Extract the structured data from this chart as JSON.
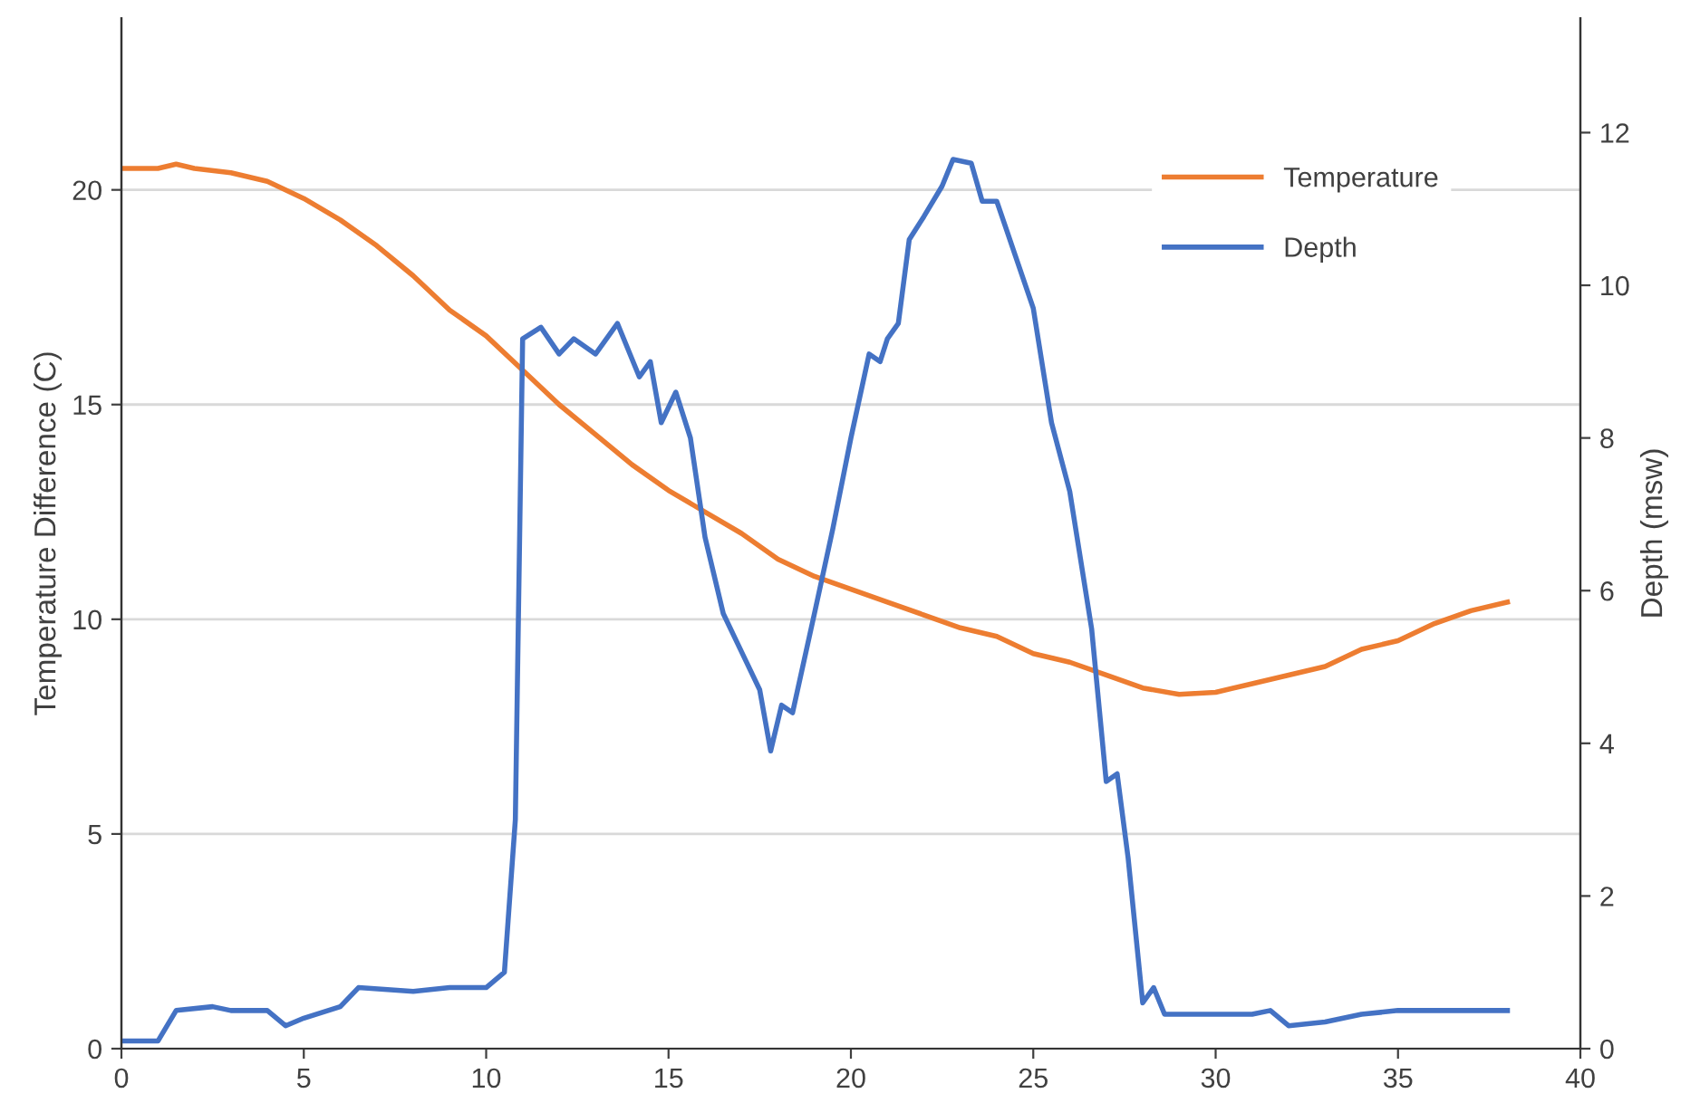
{
  "chart_data": {
    "type": "line",
    "ylabel": "Temperature Difference (C)",
    "y2label": "Depth (msw)",
    "xlim": [
      0,
      40
    ],
    "xticks": [
      0,
      5,
      10,
      15,
      20,
      25,
      30,
      35,
      40
    ],
    "ylim": [
      0,
      24
    ],
    "yticks": [
      0,
      5,
      10,
      15,
      20
    ],
    "y2lim": [
      0,
      13.5
    ],
    "y2ticks": [
      0,
      2,
      4,
      6,
      8,
      10,
      12
    ],
    "grid": "y",
    "legend": "top right",
    "marker": "none",
    "line_style": "solid",
    "series": [
      {
        "name": "Temperature",
        "color": "#ed7d31",
        "x": [
          0,
          1,
          1.5,
          2,
          3,
          4,
          5,
          6,
          7,
          8,
          9,
          10,
          11,
          12,
          13,
          14,
          15,
          16,
          17,
          18,
          19,
          20,
          21,
          22,
          23,
          24,
          25,
          26,
          27,
          28,
          29,
          30,
          31,
          32,
          33,
          34,
          35,
          36,
          37,
          38
        ],
        "values": [
          20.5,
          20.5,
          20.6,
          20.5,
          20.4,
          20.2,
          19.8,
          19.3,
          18.7,
          18.0,
          17.2,
          16.6,
          15.8,
          15.0,
          14.3,
          13.6,
          13.0,
          12.5,
          12.0,
          11.4,
          11.0,
          10.7,
          10.4,
          10.1,
          9.8,
          9.6,
          9.2,
          9.0,
          8.7,
          8.4,
          8.25,
          8.3,
          8.5,
          8.7,
          8.9,
          9.3,
          9.5,
          9.9,
          10.2,
          10.4
        ]
      },
      {
        "name": "Depth",
        "color": "#4472c4",
        "axis": "y2",
        "x": [
          0,
          1,
          1.5,
          2.5,
          3,
          4,
          4.5,
          5,
          6,
          6.5,
          8,
          9,
          10,
          10.5,
          10.8,
          11.0,
          11.5,
          12,
          12.4,
          13,
          13.6,
          14.2,
          14.5,
          14.8,
          15.2,
          15.6,
          16,
          16.5,
          17,
          17.5,
          17.8,
          18.1,
          18.4,
          19,
          19.5,
          20,
          20.5,
          20.8,
          21,
          21.3,
          21.6,
          22,
          22.5,
          22.8,
          23.3,
          23.6,
          24,
          24.5,
          25,
          25.5,
          26,
          26.6,
          27,
          27.3,
          27.6,
          28,
          28.3,
          28.6,
          30,
          31,
          31.5,
          32,
          33,
          34,
          35,
          36,
          37,
          38
        ],
        "values": [
          0.1,
          0.1,
          0.5,
          0.55,
          0.5,
          0.5,
          0.3,
          0.4,
          0.55,
          0.8,
          0.75,
          0.8,
          0.8,
          1.0,
          3.0,
          9.3,
          9.45,
          9.1,
          9.3,
          9.1,
          9.5,
          8.8,
          9.0,
          8.2,
          8.6,
          8.0,
          6.7,
          5.7,
          5.2,
          4.7,
          3.9,
          4.5,
          4.4,
          5.7,
          6.8,
          8.0,
          9.1,
          9.0,
          9.3,
          9.5,
          10.6,
          10.9,
          11.3,
          11.65,
          11.6,
          11.1,
          11.1,
          10.4,
          9.7,
          8.2,
          7.3,
          5.5,
          3.5,
          3.6,
          2.5,
          0.6,
          0.8,
          0.45,
          0.45,
          0.45,
          0.5,
          0.3,
          0.35,
          0.45,
          0.5,
          0.5,
          0.5,
          0.5
        ]
      }
    ]
  }
}
